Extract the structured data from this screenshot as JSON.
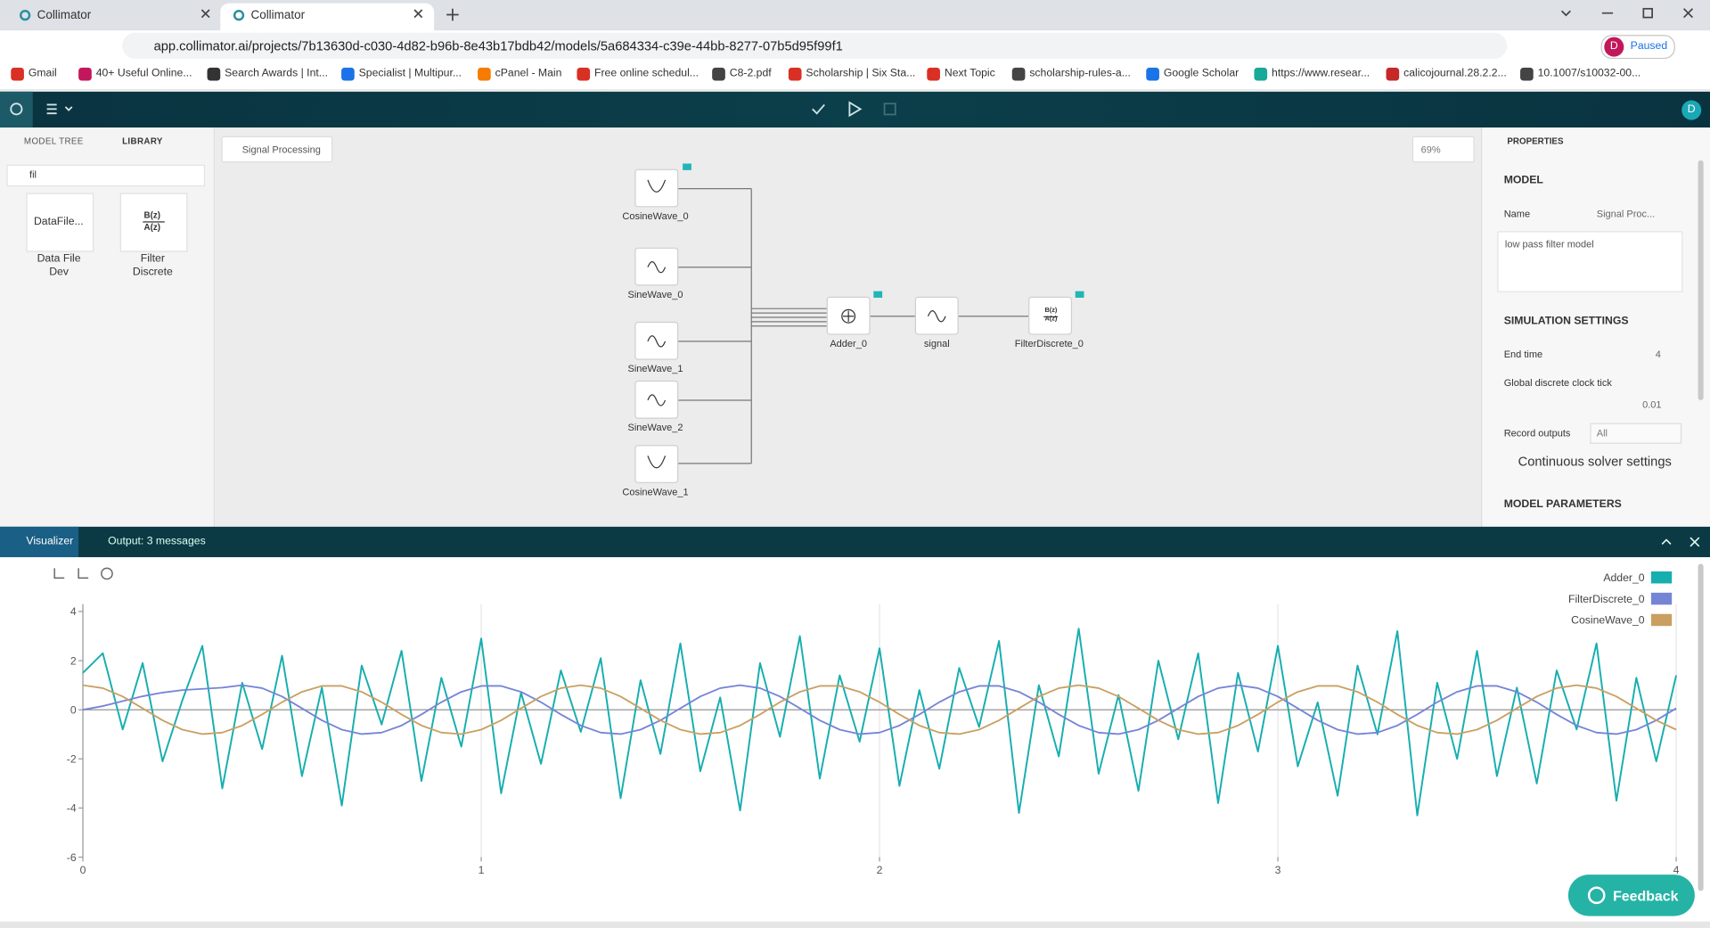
{
  "browser": {
    "tabs": [
      "Collimator",
      "Collimator"
    ],
    "url": "app.collimator.ai/projects/7b13630d-c030-4d82-b96b-8e43b17bdb42/models/5a684334-c39e-44bb-8277-07b5d95f99f1",
    "profile_initial": "D",
    "profile": "Paused",
    "bookmarks": [
      "Gmail",
      "40+ Useful Online...",
      "Search Awards | Int...",
      "Specialist | Multipur...",
      "cPanel - Main",
      "Free online schedul...",
      "C8-2.pdf",
      "Scholarship | Six Sta...",
      "Next Topic",
      "scholarship-rules-a...",
      "Google Scholar",
      "https://www.resear...",
      "calicojournal.28.2.2...",
      "10.1007/s10032-00..."
    ]
  },
  "app": {
    "user_initial": "D",
    "left_panel": {
      "tabs": [
        "MODEL TREE",
        "LIBRARY"
      ],
      "search": "fil",
      "blocks": [
        {
          "icon": "DataFile...",
          "label": "Data File Dev"
        },
        {
          "icon_numerator": "B(z)",
          "icon_denominator": "A(z)",
          "label": "Filter Discrete"
        }
      ]
    },
    "breadcrumb": "Signal Processing",
    "zoom": "69%",
    "diagram": {
      "nodes": [
        "CosineWave_0",
        "SineWave_0",
        "SineWave_1",
        "SineWave_2",
        "CosineWave_1",
        "Adder_0",
        "signal",
        "FilterDiscrete_0"
      ],
      "filter_numerator": "B(z)",
      "filter_denominator": "A(z)"
    },
    "properties": {
      "title": "PROPERTIES",
      "model_heading": "MODEL",
      "name_label": "Name",
      "name_value": "Signal Proc...",
      "description": "low pass filter model",
      "simulation_heading": "SIMULATION SETTINGS",
      "end_time_label": "End time",
      "end_time": 4,
      "clock_label": "Global discrete clock tick",
      "clock": 0.01,
      "record_label": "Record outputs",
      "record_value": "All",
      "solver": "Continuous solver settings",
      "params_heading": "MODEL PARAMETERS"
    },
    "bottom": {
      "tabs": [
        "Visualizer",
        "Output: 3 messages"
      ],
      "feedback": "Feedback"
    }
  },
  "chart_data": {
    "type": "line",
    "xlim": [
      0,
      4
    ],
    "ylim": [
      -6,
      4.3
    ],
    "xticks": [
      0,
      1,
      2,
      3,
      4
    ],
    "yticks": [
      -6,
      -4,
      -2,
      0,
      2,
      4
    ],
    "grid": true,
    "legend": "top-right",
    "x": [
      0,
      0.05,
      0.1,
      0.15,
      0.2,
      0.25,
      0.3,
      0.35,
      0.4,
      0.45,
      0.5,
      0.55,
      0.6,
      0.65,
      0.7,
      0.75,
      0.8,
      0.85,
      0.9,
      0.95,
      1,
      1.05,
      1.1,
      1.15,
      1.2,
      1.25,
      1.3,
      1.35,
      1.4,
      1.45,
      1.5,
      1.55,
      1.6,
      1.65,
      1.7,
      1.75,
      1.8,
      1.85,
      1.9,
      1.95,
      2,
      2.05,
      2.1,
      2.15,
      2.2,
      2.25,
      2.3,
      2.35,
      2.4,
      2.45,
      2.5,
      2.55,
      2.6,
      2.65,
      2.7,
      2.75,
      2.8,
      2.85,
      2.9,
      2.95,
      3,
      3.05,
      3.1,
      3.15,
      3.2,
      3.25,
      3.3,
      3.35,
      3.4,
      3.45,
      3.5,
      3.55,
      3.6,
      3.65,
      3.7,
      3.75,
      3.8,
      3.85,
      3.9,
      3.95,
      4
    ],
    "series": [
      {
        "name": "Adder_0",
        "color": "#17aeb0",
        "values": [
          1.5,
          2.3,
          -0.8,
          1.9,
          -2.1,
          0.4,
          2.6,
          -3.2,
          1.1,
          -1.6,
          2.2,
          -2.7,
          0.9,
          -3.9,
          1.8,
          -0.6,
          2.4,
          -2.9,
          1.3,
          -1.5,
          2.9,
          -3.4,
          0.7,
          -2.2,
          1.6,
          -0.9,
          2.1,
          -3.6,
          1.2,
          -1.8,
          2.7,
          -2.5,
          0.5,
          -4.1,
          1.9,
          -1.1,
          3.0,
          -2.8,
          1.4,
          -1.3,
          2.5,
          -3.1,
          0.8,
          -2.4,
          1.7,
          -0.7,
          2.8,
          -4.2,
          1.0,
          -1.9,
          3.3,
          -2.6,
          0.6,
          -3.3,
          2.0,
          -1.2,
          2.3,
          -3.8,
          1.5,
          -1.7,
          2.6,
          -2.3,
          0.3,
          -3.5,
          1.8,
          -1.0,
          3.2,
          -4.3,
          1.1,
          -2.0,
          2.4,
          -2.7,
          0.9,
          -3.0,
          1.6,
          -0.8,
          2.7,
          -3.7,
          1.3,
          -2.1,
          1.4
        ]
      },
      {
        "name": "FilterDiscrete_0",
        "color": "#7585d6",
        "values": [
          0,
          0.15,
          0.35,
          0.55,
          0.7,
          0.8,
          0.85,
          0.9,
          1,
          0.88,
          0.54,
          0.06,
          -0.43,
          -0.81,
          -0.99,
          -0.93,
          -0.64,
          -0.19,
          0.31,
          0.73,
          0.97,
          0.97,
          0.73,
          0.31,
          -0.19,
          -0.64,
          -0.93,
          -0.99,
          -0.81,
          -0.43,
          0.06,
          0.54,
          0.88,
          1,
          0.88,
          0.54,
          0.06,
          -0.43,
          -0.81,
          -0.99,
          -0.93,
          -0.64,
          -0.19,
          0.31,
          0.73,
          0.97,
          0.97,
          0.73,
          0.31,
          -0.19,
          -0.64,
          -0.93,
          -0.99,
          -0.81,
          -0.43,
          0.06,
          0.54,
          0.88,
          1,
          0.88,
          0.54,
          0.06,
          -0.43,
          -0.81,
          -0.99,
          -0.93,
          -0.64,
          -0.19,
          0.31,
          0.73,
          0.97,
          0.97,
          0.73,
          0.31,
          -0.19,
          -0.64,
          -0.93,
          -0.99,
          -0.81,
          -0.43,
          0.06
        ]
      },
      {
        "name": "CosineWave_0",
        "color": "#c9a062",
        "values": [
          1,
          0.88,
          0.54,
          0.06,
          -0.43,
          -0.81,
          -0.99,
          -0.93,
          -0.64,
          -0.19,
          0.31,
          0.73,
          0.97,
          0.97,
          0.73,
          0.31,
          -0.19,
          -0.64,
          -0.93,
          -0.99,
          -0.81,
          -0.43,
          0.06,
          0.54,
          0.88,
          1,
          0.88,
          0.54,
          0.06,
          -0.43,
          -0.81,
          -0.99,
          -0.93,
          -0.64,
          -0.19,
          0.31,
          0.73,
          0.97,
          0.97,
          0.73,
          0.31,
          -0.19,
          -0.64,
          -0.93,
          -0.99,
          -0.81,
          -0.43,
          0.06,
          0.54,
          0.88,
          1,
          0.88,
          0.54,
          0.06,
          -0.43,
          -0.81,
          -0.99,
          -0.93,
          -0.64,
          -0.19,
          0.31,
          0.73,
          0.97,
          0.97,
          0.73,
          0.31,
          -0.19,
          -0.64,
          -0.93,
          -0.99,
          -0.81,
          -0.43,
          0.06,
          0.54,
          0.88,
          1,
          0.88,
          0.54,
          0.06,
          -0.43,
          -0.81
        ]
      }
    ]
  }
}
